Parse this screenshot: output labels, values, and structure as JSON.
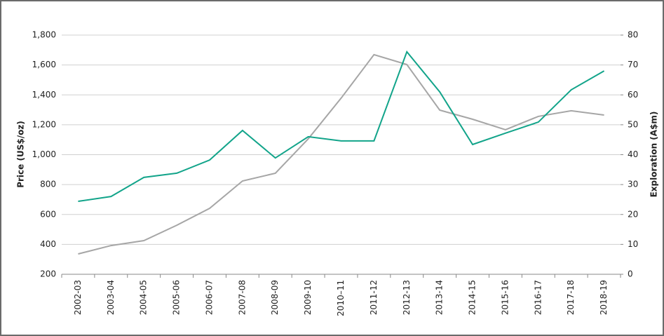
{
  "chart_data": {
    "type": "line",
    "categories": [
      "2002-03",
      "2003-04",
      "2004-05",
      "2005-06",
      "2006-07",
      "2007-08",
      "2008-09",
      "2009-10",
      "2010–11",
      "2011-12",
      "2012-13",
      "2013-14",
      "2014-15",
      "2015-16",
      "2016-17",
      "2017-18",
      "2018-19"
    ],
    "series": [
      {
        "color": "#a6a6a6",
        "values": [
          336,
          392,
          425,
          528,
          641,
          824,
          876,
          1106,
          1378,
          1669,
          1603,
          1298,
          1237,
          1167,
          1256,
          1294,
          1265
        ]
      },
      {
        "color": "#12a48a",
        "axis": "y2",
        "values": [
          24.4,
          26.0,
          32.4,
          33.8,
          38.2,
          48.1,
          38.9,
          46.0,
          44.6,
          44.6,
          74.4,
          61.0,
          43.4,
          47.2,
          50.9,
          61.7,
          68.0
        ]
      }
    ],
    "ylabel": "Price (US$/oz)",
    "y2label": "Exploration (A$m)",
    "ylim": [
      200,
      1800
    ],
    "yticks": [
      200,
      400,
      600,
      800,
      {
        "value": 1000,
        "label": "1,000"
      },
      {
        "value": 1200,
        "label": "1,200"
      },
      {
        "value": 1400,
        "label": "1,400"
      },
      {
        "value": 1600,
        "label": "1,600"
      },
      {
        "value": 1800,
        "label": "1,800"
      }
    ],
    "y2lim": [
      0,
      80
    ],
    "y2ticks": [
      0,
      10,
      20,
      30,
      40,
      50,
      60,
      70,
      80
    ],
    "grid": true
  }
}
